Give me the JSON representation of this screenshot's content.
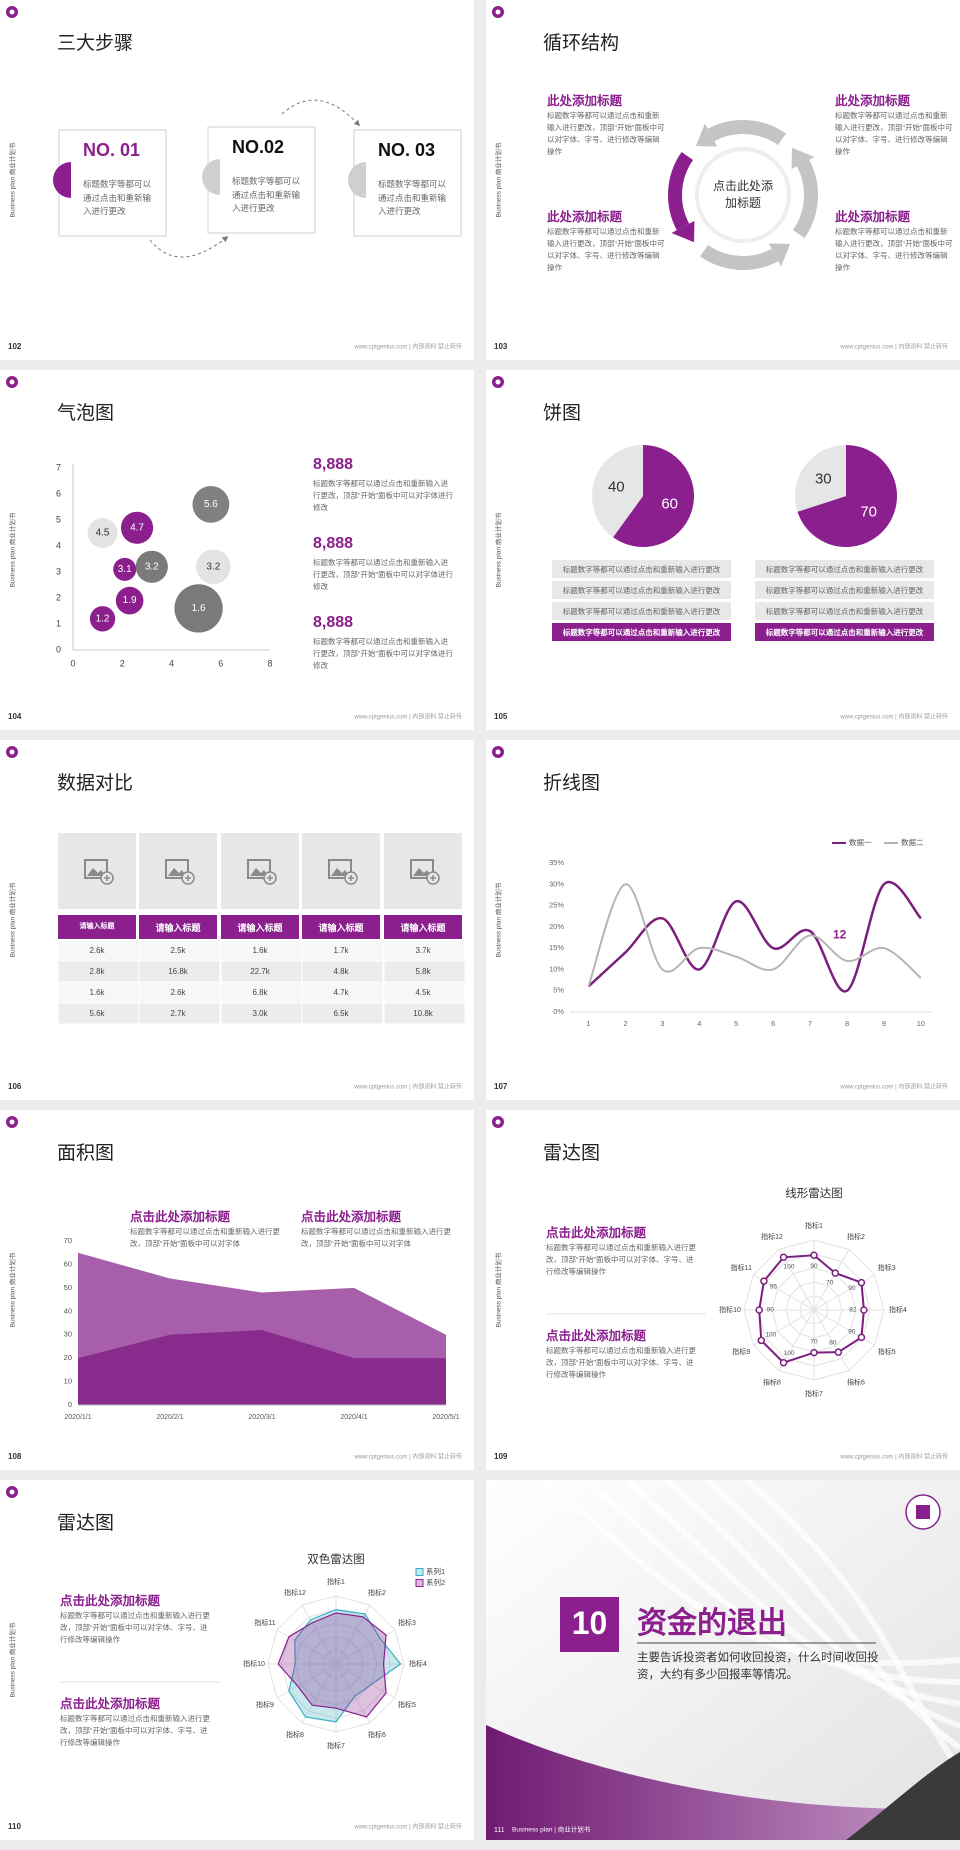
{
  "side_label": "Business plan 商业计划书",
  "footer": "www.cptgenius.com | 内部资料 禁止转传",
  "slides": [
    {
      "type": "steps",
      "page": 102,
      "title": "三大步骤",
      "steps": [
        {
          "label": "NO. 01",
          "text": "标题数字等都可以通过点击和重新输入进行更改"
        },
        {
          "label": "NO.02",
          "text": "标题数字等都可以通过点击和重新输入进行更改"
        },
        {
          "label": "NO. 03",
          "text": "标题数字等都可以通过点击和重新输入进行更改"
        }
      ]
    },
    {
      "type": "cycle",
      "page": 103,
      "title": "循环结构",
      "center": "点击此处添加标题",
      "blocks": [
        {
          "title": "此处添加标题",
          "text": "标题数字等都可以通过点击和重新输入进行更改，顶部“开始”面板中可以对字体、字号、进行修改等编辑操作"
        },
        {
          "title": "此处添加标题",
          "text": "标题数字等都可以通过点击和重新输入进行更改，顶部“开始”面板中可以对字体、字号、进行修改等编辑操作"
        },
        {
          "title": "此处添加标题",
          "text": "标题数字等都可以通过点击和重新输入进行更改，顶部“开始”面板中可以对字体、字号、进行修改等编辑操作"
        },
        {
          "title": "此处添加标题",
          "text": "标题数字等都可以通过点击和重新输入进行更改，顶部“开始”面板中可以对字体、字号、进行修改等编辑操作"
        }
      ]
    },
    {
      "type": "bubble",
      "page": 104,
      "title": "气泡图",
      "chart": {
        "type": "bubble",
        "x": [
          1.2,
          2.3,
          2.1,
          3.2,
          1.2,
          2.6,
          5.6,
          5.7,
          5.1
        ],
        "values": [
          1.2,
          1.9,
          3.1,
          3.2,
          4.5,
          4.7,
          5.6,
          3.2,
          1.6
        ],
        "sizes": [
          11,
          12,
          10,
          14,
          13,
          14,
          16,
          15,
          21
        ],
        "colors": [
          "#8a1f8d",
          "#8a1f8d",
          "#8a1f8d",
          "#7a7a7a",
          "#e3e3e3",
          "#8a1f8d",
          "#808080",
          "#e3e3e3",
          "#7a7a7a"
        ],
        "xlim": [
          0,
          8
        ],
        "xticks": [
          0,
          2,
          4,
          6,
          8
        ],
        "ylim": [
          0,
          7
        ],
        "yticks": [
          0,
          1,
          2,
          3,
          4,
          5,
          6,
          7
        ]
      },
      "stats": [
        {
          "value": "8,888",
          "text": "标题数字等都可以通过点击和重新输入进行更改，顶部“开始”面板中可以对字体进行修改"
        },
        {
          "value": "8,888",
          "text": "标题数字等都可以通过点击和重新输入进行更改，顶部“开始”面板中可以对字体进行修改"
        },
        {
          "value": "8,888",
          "text": "标题数字等都可以通过点击和重新输入进行更改，顶部“开始”面板中可以对字体进行修改"
        }
      ]
    },
    {
      "type": "pies",
      "page": 105,
      "title": "饼图",
      "pies": [
        {
          "type": "pie",
          "values": [
            60,
            40
          ],
          "colors": [
            "#8a1f8d",
            "#e6e6e6"
          ],
          "highlight": 3,
          "rows": [
            "标题数字等都可以通过点击和重新输入进行更改",
            "标题数字等都可以通过点击和重新输入进行更改",
            "标题数字等都可以通过点击和重新输入进行更改",
            "标题数字等都可以通过点击和重新输入进行更改"
          ]
        },
        {
          "type": "pie",
          "values": [
            70,
            30
          ],
          "colors": [
            "#8a1f8d",
            "#e6e6e6"
          ],
          "highlight": 3,
          "rows": [
            "标题数字等都可以通过点击和重新输入进行更改",
            "标题数字等都可以通过点击和重新输入进行更改",
            "标题数字等都可以通过点击和重新输入进行更改",
            "标题数字等都可以通过点击和重新输入进行更改"
          ]
        }
      ]
    },
    {
      "type": "table",
      "page": 106,
      "title": "数据对比",
      "table": {
        "header": [
          "请输入标题",
          "请输入标题",
          "请输入标题",
          "请输入标题",
          "请输入标题"
        ],
        "rows": [
          [
            "2.6k",
            "2.5k",
            "1.6k",
            "1.7k",
            "3.7k"
          ],
          [
            "2.8k",
            "16.8k",
            "22.7k",
            "4.8k",
            "5.8k"
          ],
          [
            "1.6k",
            "2.6k",
            "6.8k",
            "4.7k",
            "4.5k"
          ],
          [
            "5.6k",
            "2.7k",
            "3.0k",
            "6.5k",
            "10.8k"
          ]
        ]
      }
    },
    {
      "type": "line",
      "page": 107,
      "title": "折线图",
      "chart": {
        "type": "line",
        "x": [
          1,
          2,
          3,
          4,
          5,
          6,
          7,
          8,
          9,
          10
        ],
        "xlim": [
          0.5,
          10.3
        ],
        "xticks": [
          1,
          2,
          3,
          4,
          5,
          6,
          7,
          8,
          9,
          10
        ],
        "ylim": [
          0,
          35
        ],
        "yticks": [
          {
            "value": 0,
            "label": "0%"
          },
          {
            "value": 5,
            "label": "5%"
          },
          {
            "value": 10,
            "label": "10%"
          },
          {
            "value": 15,
            "label": "15%"
          },
          {
            "value": 20,
            "label": "20%"
          },
          {
            "value": 25,
            "label": "25%"
          },
          {
            "value": 30,
            "label": "30%"
          },
          {
            "value": 35,
            "label": "35%"
          }
        ],
        "series": [
          {
            "name": "数据一",
            "color": "#7b1f7e",
            "values": [
              6,
              14,
              22,
              10,
              26,
              15,
              19,
              5,
              30,
              22
            ]
          },
          {
            "name": "数据二",
            "color": "#b5b5b5",
            "values": [
              6,
              30,
              10,
              15,
              13,
              10,
              18,
              12,
              15,
              8
            ]
          }
        ],
        "annotations": [
          {
            "text": 12,
            "x": 7.8,
            "y": 18
          }
        ]
      }
    },
    {
      "type": "area",
      "page": 108,
      "title": "面积图",
      "blocks": [
        {
          "title": "点击此处添加标题",
          "text": "标题数字等都可以通过点击和重新输入进行更改，顶部“开始”面板中可以对字体"
        },
        {
          "title": "点击此处添加标题",
          "text": "标题数字等都可以通过点击和重新输入进行更改，顶部“开始”面板中可以对字体"
        }
      ],
      "chart": {
        "type": "area",
        "categories": [
          "2020/1/1",
          "2020/2/1",
          "2020/3/1",
          "2020/4/1",
          "2020/5/1"
        ],
        "ylim": [
          0,
          70
        ],
        "yticks": [
          0,
          10,
          20,
          30,
          40,
          50,
          60,
          70
        ],
        "series": [
          {
            "color": "#a75fab",
            "values": [
              65,
              54,
              48,
              50,
              30
            ]
          },
          {
            "color": "#892b8c",
            "values": [
              20,
              30,
              32,
              20,
              20
            ]
          }
        ]
      }
    },
    {
      "type": "radar",
      "page": 109,
      "title": "雷达图",
      "blocks": [
        {
          "title": "点击此处添加标题",
          "text": "标题数字等都可以通过点击和重新输入进行更改，顶部“开始”面板中可以对字体、字号、进行修改等编辑操作"
        },
        {
          "title": "点击此处添加标题",
          "text": "标题数字等都可以通过点击和重新输入进行更改，顶部“开始”面板中可以对字体、字号、进行修改等编辑操作"
        }
      ],
      "chart": {
        "type": "radar",
        "title": "线形雷达图",
        "rlim": [
          0,
          115
        ],
        "value_labels": true,
        "fill": false,
        "categories": [
          "指标1",
          "指标2",
          "指标3",
          "指标4",
          "指标5",
          "指标6",
          "指标7",
          "指标8",
          "指标9",
          "指标10",
          "指标11",
          "指标12"
        ],
        "series": [
          {
            "color": "#7b1f7e",
            "values": [
              90,
              70,
              90,
              82,
              90,
              80,
              70,
              100,
              100,
              90,
              95,
              100
            ]
          }
        ]
      }
    },
    {
      "type": "radar",
      "page": 110,
      "title": "雷达图",
      "blocks": [
        {
          "title": "点击此处添加标题",
          "text": "标题数字等都可以通过点击和重新输入进行更改，顶部“开始”面板中可以对字体、字号、进行修改等编辑操作"
        },
        {
          "title": "点击此处添加标题",
          "text": "标题数字等都可以通过点击和重新输入进行更改，顶部“开始”面板中可以对字体、字号、进行修改等编辑操作"
        }
      ],
      "chart": {
        "type": "radar",
        "title": "双色雷达图",
        "rlim": [
          0,
          100
        ],
        "value_labels": false,
        "fill": true,
        "categories": [
          "指标1",
          "指标2",
          "指标3",
          "指标4",
          "指标5",
          "指标6",
          "指标7",
          "指标8",
          "指标9",
          "指标10",
          "指标11",
          "指标12"
        ],
        "series": [
          {
            "name": "系列1",
            "color": "#3aaec2",
            "values": [
              80,
              85,
              75,
              95,
              60,
              55,
              85,
              90,
              80,
              60,
              70,
              75
            ]
          },
          {
            "name": "系列2",
            "color": "#8a1f8d",
            "values": [
              75,
              80,
              85,
              70,
              85,
              90,
              65,
              70,
              65,
              85,
              80,
              70
            ]
          }
        ]
      }
    },
    {
      "type": "cover",
      "page": 111,
      "number": 10,
      "title": "资金的退出",
      "text": "主要告诉投资者如何收回投资，什么时间收回投资，大约有多少回报率等情况。",
      "footer": "Business plan | 商业计划书"
    }
  ]
}
